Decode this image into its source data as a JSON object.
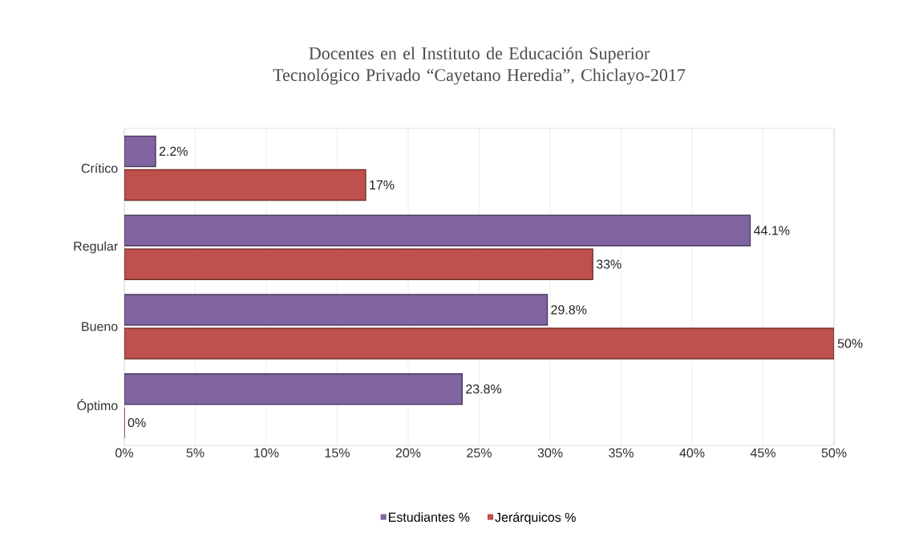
{
  "chart_data": {
    "type": "bar",
    "orientation": "horizontal",
    "title": "Docentes en el Instituto de Educación Superior Tecnológico Privado “Cayetano Heredia”, Chiclayo-2017",
    "categories": [
      "Crítico",
      "Regular",
      "Bueno",
      "Óptimo"
    ],
    "series": [
      {
        "name": "Estudiantes %",
        "color": "#8064a2",
        "values": [
          2.2,
          44.1,
          29.8,
          23.8
        ],
        "value_labels": [
          "2.2%",
          "44.1%",
          "29.8%",
          "23.8%"
        ]
      },
      {
        "name": "Jerárquicos %",
        "color": "#c0504d",
        "values": [
          17,
          33,
          50,
          0
        ],
        "value_labels": [
          "17%",
          "33%",
          "50%",
          "0%"
        ]
      }
    ],
    "xlim": [
      0,
      50
    ],
    "xticks": [
      {
        "value": 0,
        "label": "0%"
      },
      {
        "value": 5,
        "label": "5%"
      },
      {
        "value": 10,
        "label": "10%"
      },
      {
        "value": 15,
        "label": "15%"
      },
      {
        "value": 20,
        "label": "20%"
      },
      {
        "value": 25,
        "label": "25%"
      },
      {
        "value": 30,
        "label": "30%"
      },
      {
        "value": 35,
        "label": "35%"
      },
      {
        "value": 40,
        "label": "40%"
      },
      {
        "value": 45,
        "label": "45%"
      },
      {
        "value": 50,
        "label": "50%"
      }
    ],
    "grid": "x",
    "legend": "bottom"
  }
}
